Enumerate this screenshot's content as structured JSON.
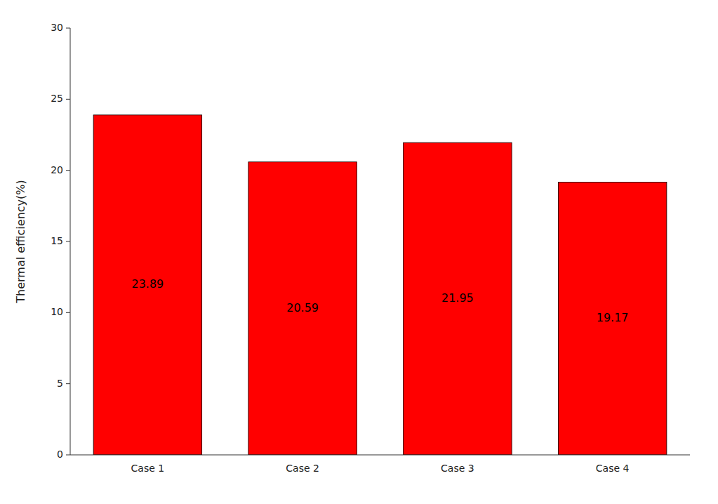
{
  "chart_data": {
    "type": "bar",
    "ylabel": "Thermal efficiency(%)",
    "categories": [
      "Case 1",
      "Case 2",
      "Case 3",
      "Case 4"
    ],
    "values": [
      23.89,
      20.59,
      21.95,
      19.17
    ],
    "color": "#FF0000",
    "ylim": [
      0,
      30
    ],
    "yticks": [
      0,
      5,
      10,
      15,
      20,
      25,
      30
    ],
    "grid": false,
    "data_labels": true
  }
}
